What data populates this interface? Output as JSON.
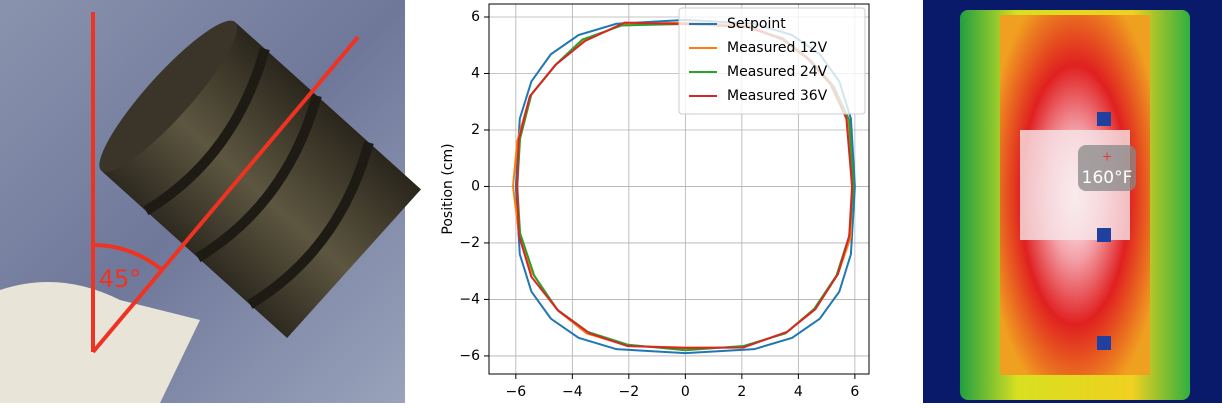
{
  "chart_data": {
    "type": "line",
    "ylabel": "Position (cm)",
    "xlim": [
      -6.95,
      6.5
    ],
    "ylim": [
      -6.64,
      6.46
    ],
    "xticks": [
      {
        "value": -6,
        "label": "−6"
      },
      {
        "value": -4,
        "label": "−4"
      },
      {
        "value": -2,
        "label": "−2"
      },
      0,
      2,
      4,
      6
    ],
    "yticks": [
      {
        "value": -6,
        "label": "−6"
      },
      {
        "value": -4,
        "label": "−4"
      },
      {
        "value": -2,
        "label": "−2"
      },
      0,
      2,
      4,
      6
    ],
    "grid": true,
    "legend": "upper right",
    "series": [
      {
        "name": "Setpoint",
        "color": "#1f77b4",
        "x": [
          6,
          5.86,
          5.45,
          4.76,
          3.78,
          2.44,
          0,
          -2.44,
          -3.78,
          -4.76,
          -5.45,
          -5.86,
          -6,
          -5.86,
          -5.45,
          -4.76,
          -3.78,
          -2.44,
          0,
          2.44,
          3.78,
          4.76,
          5.45,
          5.86,
          6
        ],
        "values": [
          0,
          2.4,
          3.72,
          4.68,
          5.36,
          5.76,
          5.9,
          5.76,
          5.36,
          4.68,
          3.72,
          2.4,
          0,
          -2.4,
          -3.72,
          -4.68,
          -5.36,
          -5.76,
          -5.9,
          -5.76,
          -5.36,
          -4.68,
          -3.72,
          -2.4,
          0
        ]
      },
      {
        "name": "Measured 12V",
        "color": "#ff7f0e",
        "x": [
          5.9,
          5.75,
          5.2,
          4.4,
          3.5,
          2.2,
          0,
          -2.2,
          -3.6,
          -4.6,
          -5.5,
          -5.95,
          -6.1,
          -5.9,
          -5.4,
          -4.5,
          -3.5,
          -2,
          0,
          2,
          3.6,
          4.6,
          5.4,
          5.85,
          5.9
        ],
        "values": [
          0,
          2.3,
          3.6,
          4.5,
          5.2,
          5.7,
          5.8,
          5.75,
          5.15,
          4.3,
          3.2,
          1.6,
          0,
          -1.6,
          -3.1,
          -4.4,
          -5.2,
          -5.65,
          -5.7,
          -5.7,
          -5.15,
          -4.3,
          -3.1,
          -1.8,
          0
        ]
      },
      {
        "name": "Measured 24V",
        "color": "#2ca02c",
        "x": [
          5.95,
          5.8,
          5.25,
          4.45,
          3.45,
          2.15,
          0,
          -2.25,
          -3.65,
          -4.55,
          -5.45,
          -5.85,
          -5.95,
          -5.85,
          -5.35,
          -4.55,
          -3.45,
          -2.05,
          0,
          2.05,
          3.55,
          4.55,
          5.35,
          5.8,
          5.95
        ],
        "values": [
          0,
          2.35,
          3.55,
          4.45,
          5.25,
          5.65,
          5.75,
          5.7,
          5.2,
          4.35,
          3.25,
          1.7,
          0,
          -1.65,
          -3.15,
          -4.35,
          -5.15,
          -5.6,
          -5.8,
          -5.65,
          -5.2,
          -4.35,
          -3.15,
          -1.75,
          0
        ]
      },
      {
        "name": "Measured 36V",
        "color": "#d62728",
        "x": [
          5.9,
          5.7,
          5.15,
          4.35,
          3.45,
          2.2,
          0,
          -2.15,
          -3.55,
          -4.6,
          -5.5,
          -5.9,
          -5.95,
          -5.9,
          -5.45,
          -4.5,
          -3.4,
          -2.05,
          0,
          2.05,
          3.6,
          4.6,
          5.4,
          5.8,
          5.9
        ],
        "values": [
          0,
          2.4,
          3.6,
          4.5,
          5.2,
          5.65,
          5.75,
          5.8,
          5.15,
          4.3,
          3.2,
          1.65,
          0,
          -1.7,
          -3.2,
          -4.4,
          -5.2,
          -5.65,
          -5.72,
          -5.7,
          -5.15,
          -4.35,
          -3.1,
          -1.75,
          0
        ]
      }
    ]
  },
  "photo": {
    "angle_label": "45°"
  },
  "thermal": {
    "temperature_label": "160°F"
  }
}
